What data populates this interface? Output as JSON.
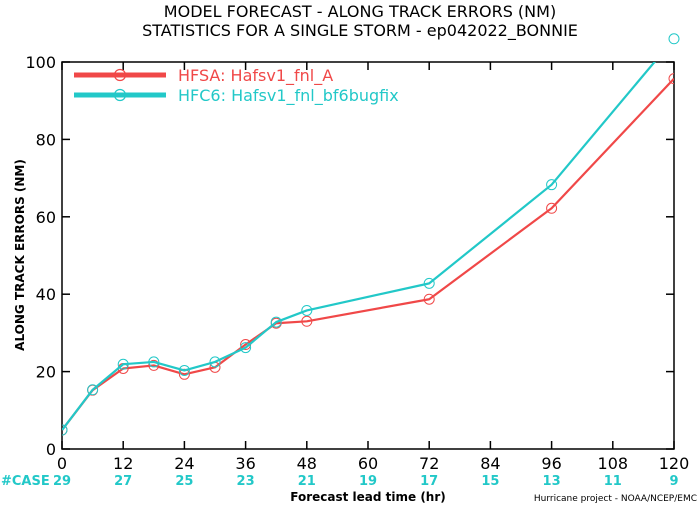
{
  "chart_data": {
    "type": "line",
    "title": "MODEL FORECAST - ALONG TRACK ERRORS (NM)",
    "subtitle": "STATISTICS FOR A SINGLE STORM - ep042022_BONNIE",
    "xlabel": "Forecast lead time (hr)",
    "ylabel": "ALONG TRACK ERRORS (NM)",
    "xlim": [
      0,
      120
    ],
    "ylim": [
      0,
      100
    ],
    "x_ticks": [
      0,
      12,
      24,
      36,
      48,
      60,
      72,
      84,
      96,
      108,
      120
    ],
    "x_tick_labels": [
      "0",
      "12",
      "24",
      "36",
      "48",
      "60",
      "72",
      "84",
      "96",
      "108",
      "120"
    ],
    "y_ticks": [
      0,
      20,
      40,
      60,
      80,
      100
    ],
    "y_tick_labels": [
      "0",
      "20",
      "40",
      "60",
      "80",
      "100"
    ],
    "grid": false,
    "legend_position": "top-left",
    "x": [
      0,
      6,
      12,
      18,
      24,
      30,
      36,
      42,
      48,
      72,
      96,
      120
    ],
    "series": [
      {
        "name": "HFSA: Hafsv1_fnl_A",
        "color": "#f04848",
        "values": [
          4.9,
          15.2,
          20.8,
          21.6,
          19.3,
          21.1,
          27.0,
          32.5,
          33.0,
          38.7,
          62.2,
          95.7
        ]
      },
      {
        "name": "HFC6: Hafsv1_fnl_bf6bugfix",
        "color": "#22c8c8",
        "values": [
          4.9,
          15.3,
          21.9,
          22.5,
          20.3,
          22.5,
          26.2,
          32.8,
          35.8,
          42.8,
          68.3,
          106.0
        ]
      }
    ],
    "case_label": "#CASE",
    "case_x": [
      0,
      12,
      24,
      36,
      48,
      60,
      72,
      84,
      96,
      108,
      120
    ],
    "case_counts": [
      "29",
      "27",
      "25",
      "23",
      "21",
      "19",
      "17",
      "15",
      "13",
      "11",
      "9"
    ],
    "case_color": "#22c8c8",
    "credit": "Hurricane project - NOAA/NCEP/EMC"
  }
}
